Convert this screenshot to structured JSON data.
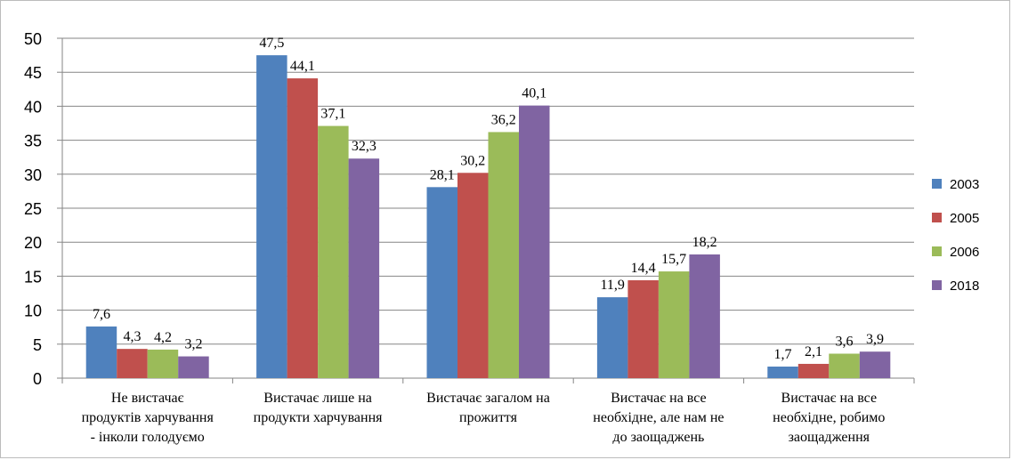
{
  "chart_data": {
    "type": "bar",
    "categories": [
      [
        "Не вистачає",
        "продуктів харчування",
        "- інколи голодуємо"
      ],
      [
        "Вистачає лише на",
        "продукти харчування"
      ],
      [
        "Вистачає загалом на",
        "прожиття"
      ],
      [
        "Вистачає на все",
        "необхідне, але нам не",
        "до заощаджень"
      ],
      [
        "Вистачає на все",
        "необхідне, робимо",
        "заощадження"
      ]
    ],
    "series": [
      {
        "name": "2003",
        "color": "#4f81bd",
        "values": [
          7.6,
          47.5,
          28.1,
          11.9,
          1.7
        ],
        "labels": [
          "7,6",
          "47,5",
          "28,1",
          "11,9",
          "1,7"
        ]
      },
      {
        "name": "2005",
        "color": "#c0504d",
        "values": [
          4.3,
          44.1,
          30.2,
          14.4,
          2.1
        ],
        "labels": [
          "4,3",
          "44,1",
          "30,2",
          "14,4",
          "2,1"
        ]
      },
      {
        "name": "2006",
        "color": "#9bbb59",
        "values": [
          4.2,
          37.1,
          36.2,
          15.7,
          3.6
        ],
        "labels": [
          "4,2",
          "37,1",
          "36,2",
          "15,7",
          "3,6"
        ]
      },
      {
        "name": "2018",
        "color": "#8064a2",
        "values": [
          3.2,
          32.3,
          40.1,
          18.2,
          3.9
        ],
        "labels": [
          "3,2",
          "32,3",
          "40,1",
          "18,2",
          "3,9"
        ]
      }
    ],
    "ylim": [
      0,
      50
    ],
    "yticks": [
      0,
      5,
      10,
      15,
      20,
      25,
      30,
      35,
      40,
      45,
      50
    ],
    "grid": true,
    "legend_position": "right"
  }
}
